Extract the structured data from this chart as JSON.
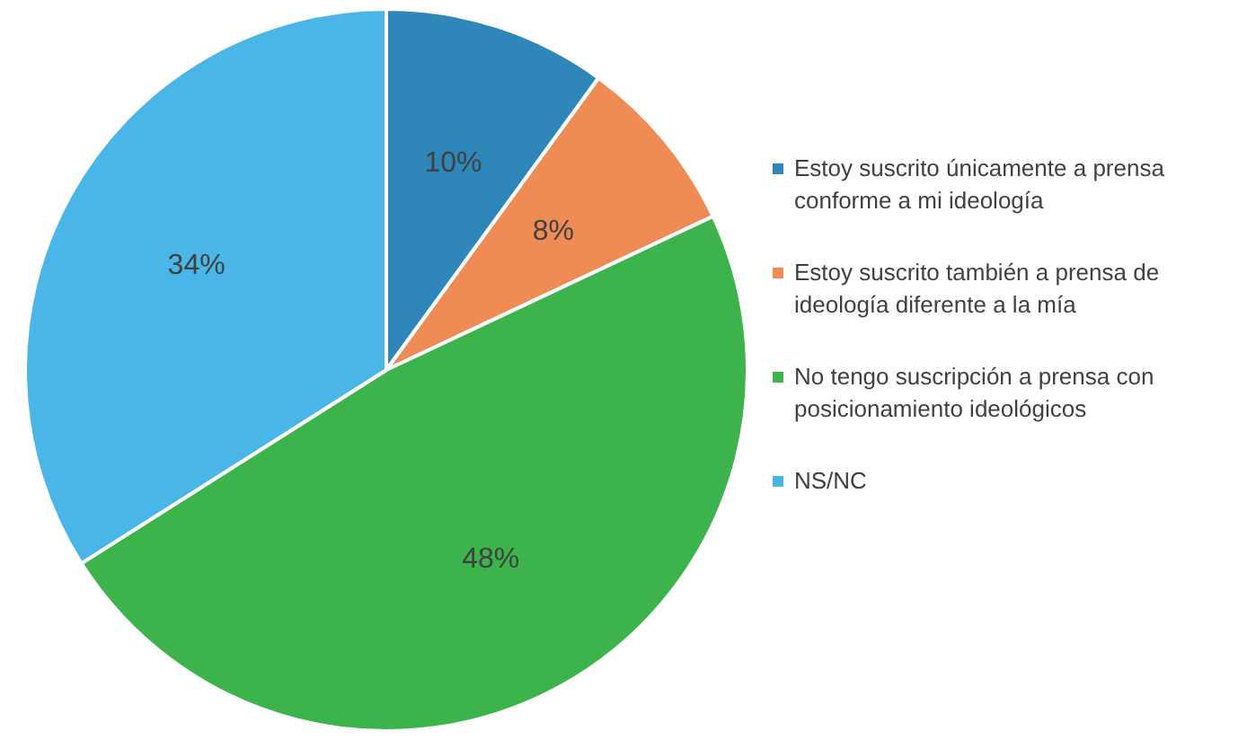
{
  "chart_data": {
    "type": "pie",
    "categories": [
      "Estoy suscrito únicamente a prensa conforme a mi ideología",
      "Estoy suscrito también a prensa de ideología diferente a la mía",
      "No tengo suscripción a prensa con posicionamiento ideológicos",
      "NS/NC"
    ],
    "values": [
      10,
      8,
      48,
      34
    ],
    "colors": [
      "#2f87b9",
      "#ef8b55",
      "#3db34c",
      "#4ab6e8"
    ],
    "value_labels": [
      "10%",
      "8%",
      "48%",
      "34%"
    ],
    "legend": "right"
  }
}
